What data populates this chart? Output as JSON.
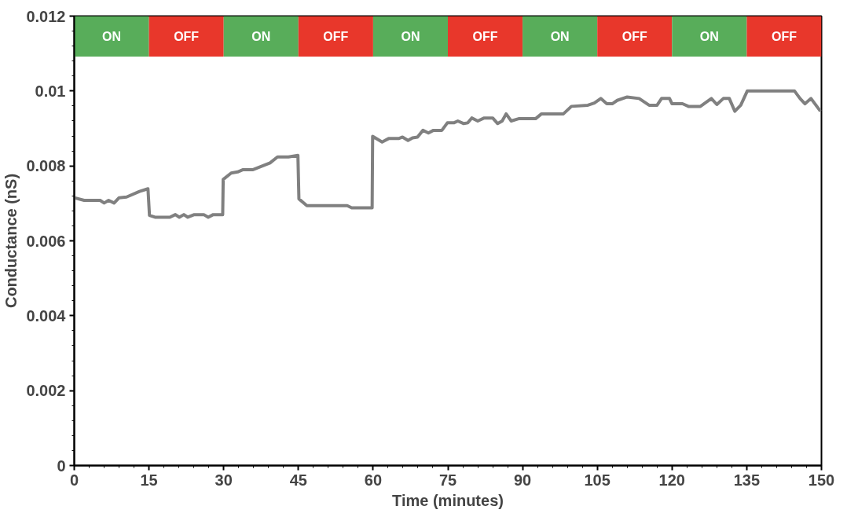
{
  "chart_data": {
    "type": "line",
    "xlabel": "Time (minutes)",
    "ylabel": "Conductance (nS)",
    "xlim": [
      0,
      150
    ],
    "xticks": [
      0,
      15,
      30,
      45,
      60,
      75,
      90,
      105,
      120,
      135,
      150
    ],
    "ylim": [
      0,
      0.012
    ],
    "yticks": [
      {
        "value": 0,
        "label": "0"
      },
      {
        "value": 0.002,
        "label": "0.002"
      },
      {
        "value": 0.004,
        "label": "0.004"
      },
      {
        "value": 0.006,
        "label": "0.006"
      },
      {
        "value": 0.008,
        "label": "0.008"
      },
      {
        "value": 0.01,
        "label": "0.01"
      },
      {
        "value": 0.012,
        "label": "0.012"
      }
    ],
    "grid": false,
    "marker": "none",
    "line_style": "solid",
    "series": [
      {
        "color": "#808080",
        "x": [
          0,
          2,
          5.2,
          6,
          6.9,
          8,
          9,
          10.5,
          13.1,
          14.8,
          15.1,
          16.2,
          19.2,
          20.3,
          21.1,
          22,
          22.8,
          24.1,
          26,
          26.9,
          27.9,
          29.8,
          29.9,
          31.5,
          32.8,
          33.9,
          35.9,
          38,
          39.3,
          40.8,
          43,
          44.9,
          45.1,
          46.7,
          54.8,
          55.7,
          59.8,
          59.9,
          61.8,
          63.1,
          65.1,
          65.9,
          67,
          67.9,
          68.9,
          70,
          71.1,
          72.1,
          73.8,
          74.9,
          76.2,
          77,
          78.2,
          79,
          79.8,
          81,
          82.3,
          84,
          85,
          85.9,
          86.7,
          87.7,
          89.2,
          92.6,
          93.8,
          98.2,
          99.8,
          103.1,
          104.4,
          105.7,
          106.9,
          108,
          109,
          111,
          113.4,
          115.4,
          117,
          117.9,
          119.5,
          120,
          122.1,
          123.3,
          125.7,
          127.9,
          129,
          130.3,
          131.5,
          132.6,
          133.8,
          135.1,
          144.6,
          145.7,
          146.7,
          147.9,
          149.8
        ],
        "values": [
          0.00715,
          0.00708,
          0.00708,
          0.00701,
          0.00708,
          0.00701,
          0.00715,
          0.00717,
          0.00732,
          0.00739,
          0.00668,
          0.00663,
          0.00663,
          0.0067,
          0.00663,
          0.0067,
          0.00663,
          0.0067,
          0.0067,
          0.00663,
          0.0067,
          0.0067,
          0.00764,
          0.00781,
          0.00784,
          0.0079,
          0.0079,
          0.00801,
          0.00808,
          0.00824,
          0.00824,
          0.00828,
          0.00712,
          0.00694,
          0.00694,
          0.00688,
          0.00688,
          0.00879,
          0.00864,
          0.00873,
          0.00873,
          0.00877,
          0.00868,
          0.00875,
          0.00877,
          0.00895,
          0.00888,
          0.00895,
          0.00895,
          0.00915,
          0.00915,
          0.0092,
          0.00913,
          0.00915,
          0.00928,
          0.0092,
          0.00928,
          0.00928,
          0.00913,
          0.0092,
          0.00939,
          0.0092,
          0.00926,
          0.00926,
          0.00939,
          0.00939,
          0.00959,
          0.00962,
          0.00968,
          0.0098,
          0.00966,
          0.00966,
          0.00975,
          0.00984,
          0.0098,
          0.00962,
          0.00962,
          0.0098,
          0.0098,
          0.00966,
          0.00966,
          0.00959,
          0.00959,
          0.0098,
          0.00964,
          0.0098,
          0.0098,
          0.00946,
          0.00962,
          0.01,
          0.01,
          0.0098,
          0.00966,
          0.0098,
          0.00946
        ]
      }
    ],
    "bands": [
      {
        "axis": "x",
        "from": 0,
        "to": 15,
        "label": "ON",
        "color": "#58ad5a"
      },
      {
        "axis": "x",
        "from": 15,
        "to": 30,
        "label": "OFF",
        "color": "#e8372b"
      },
      {
        "axis": "x",
        "from": 30,
        "to": 45,
        "label": "ON",
        "color": "#58ad5a"
      },
      {
        "axis": "x",
        "from": 45,
        "to": 60,
        "label": "OFF",
        "color": "#e8372b"
      },
      {
        "axis": "x",
        "from": 60,
        "to": 75,
        "label": "ON",
        "color": "#58ad5a"
      },
      {
        "axis": "x",
        "from": 75,
        "to": 90,
        "label": "OFF",
        "color": "#e8372b"
      },
      {
        "axis": "x",
        "from": 90,
        "to": 105,
        "label": "ON",
        "color": "#58ad5a"
      },
      {
        "axis": "x",
        "from": 105,
        "to": 120,
        "label": "OFF",
        "color": "#e8372b"
      },
      {
        "axis": "x",
        "from": 120,
        "to": 135,
        "label": "ON",
        "color": "#58ad5a"
      },
      {
        "axis": "x",
        "from": 135,
        "to": 150,
        "label": "OFF",
        "color": "#e8372b"
      }
    ]
  }
}
